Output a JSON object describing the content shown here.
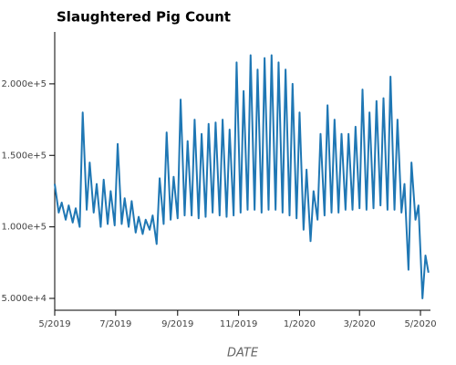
{
  "chart_data": {
    "type": "line",
    "title": "Slaughtered Pig Count",
    "x_label": "DATE",
    "color": "#1f77b4",
    "x": [
      "2019-05-01",
      "2019-05-05",
      "2019-05-08",
      "2019-05-12",
      "2019-05-15",
      "2019-05-19",
      "2019-05-22",
      "2019-05-26",
      "2019-05-29",
      "2019-06-02",
      "2019-06-05",
      "2019-06-09",
      "2019-06-12",
      "2019-06-16",
      "2019-06-19",
      "2019-06-23",
      "2019-06-26",
      "2019-06-30",
      "2019-07-03",
      "2019-07-07",
      "2019-07-10",
      "2019-07-14",
      "2019-07-17",
      "2019-07-21",
      "2019-07-24",
      "2019-07-28",
      "2019-07-31",
      "2019-08-04",
      "2019-08-07",
      "2019-08-11",
      "2019-08-14",
      "2019-08-18",
      "2019-08-21",
      "2019-08-25",
      "2019-08-28",
      "2019-09-01",
      "2019-09-04",
      "2019-09-08",
      "2019-09-11",
      "2019-09-15",
      "2019-09-18",
      "2019-09-22",
      "2019-09-25",
      "2019-09-29",
      "2019-10-02",
      "2019-10-06",
      "2019-10-09",
      "2019-10-13",
      "2019-10-16",
      "2019-10-20",
      "2019-10-23",
      "2019-10-27",
      "2019-10-30",
      "2019-11-03",
      "2019-11-06",
      "2019-11-10",
      "2019-11-13",
      "2019-11-17",
      "2019-11-20",
      "2019-11-24",
      "2019-11-27",
      "2019-12-01",
      "2019-12-04",
      "2019-12-08",
      "2019-12-11",
      "2019-12-15",
      "2019-12-18",
      "2019-12-22",
      "2019-12-25",
      "2019-12-29",
      "2020-01-01",
      "2020-01-05",
      "2020-01-08",
      "2020-01-12",
      "2020-01-15",
      "2020-01-19",
      "2020-01-22",
      "2020-01-26",
      "2020-01-29",
      "2020-02-02",
      "2020-02-05",
      "2020-02-09",
      "2020-02-12",
      "2020-02-16",
      "2020-02-19",
      "2020-02-23",
      "2020-02-26",
      "2020-03-01",
      "2020-03-04",
      "2020-03-08",
      "2020-03-11",
      "2020-03-15",
      "2020-03-18",
      "2020-03-22",
      "2020-03-25",
      "2020-03-29",
      "2020-04-01",
      "2020-04-05",
      "2020-04-08",
      "2020-04-12",
      "2020-04-15",
      "2020-04-19",
      "2020-04-22",
      "2020-04-26",
      "2020-04-29",
      "2020-05-03",
      "2020-05-06",
      "2020-05-09"
    ],
    "values": [
      130000,
      110000,
      117000,
      105000,
      115000,
      103000,
      113000,
      100000,
      180000,
      112000,
      145000,
      110000,
      130000,
      100000,
      133000,
      102000,
      125000,
      101000,
      158000,
      102000,
      120000,
      100000,
      118000,
      96000,
      107000,
      95000,
      105000,
      98000,
      108000,
      88000,
      134000,
      102000,
      166000,
      105000,
      135000,
      106000,
      189000,
      108000,
      160000,
      108000,
      175000,
      106000,
      165000,
      107000,
      172000,
      110000,
      173000,
      108000,
      175000,
      107000,
      168000,
      108000,
      215000,
      110000,
      195000,
      112000,
      220000,
      112000,
      210000,
      110000,
      218000,
      112000,
      220000,
      112000,
      215000,
      110000,
      210000,
      108000,
      200000,
      106000,
      180000,
      98000,
      140000,
      90000,
      125000,
      105000,
      165000,
      108000,
      185000,
      110000,
      175000,
      110000,
      165000,
      112000,
      165000,
      112000,
      170000,
      113000,
      196000,
      112000,
      180000,
      113000,
      188000,
      115000,
      190000,
      112000,
      205000,
      112000,
      175000,
      110000,
      130000,
      70000,
      145000,
      105000,
      115000,
      50000,
      80000,
      68000
    ],
    "xlim": [
      "2019-05-01",
      "2020-05-11"
    ],
    "xticks": [
      {
        "value": "2019-05-01",
        "label": "5/2019"
      },
      {
        "value": "2019-07-01",
        "label": "7/2019"
      },
      {
        "value": "2019-09-01",
        "label": "9/2019"
      },
      {
        "value": "2019-11-01",
        "label": "11/2019"
      },
      {
        "value": "2020-01-01",
        "label": "1/2020"
      },
      {
        "value": "2020-03-01",
        "label": "3/2020"
      },
      {
        "value": "2020-05-01",
        "label": "5/2020"
      }
    ],
    "ylim": [
      41700,
      236300
    ],
    "yticks": [
      {
        "value": 50000,
        "label": "5.000e+4"
      },
      {
        "value": 100000,
        "label": "1.000e+5"
      },
      {
        "value": 150000,
        "label": "1.500e+5"
      },
      {
        "value": 200000,
        "label": "2.000e+5"
      }
    ]
  }
}
